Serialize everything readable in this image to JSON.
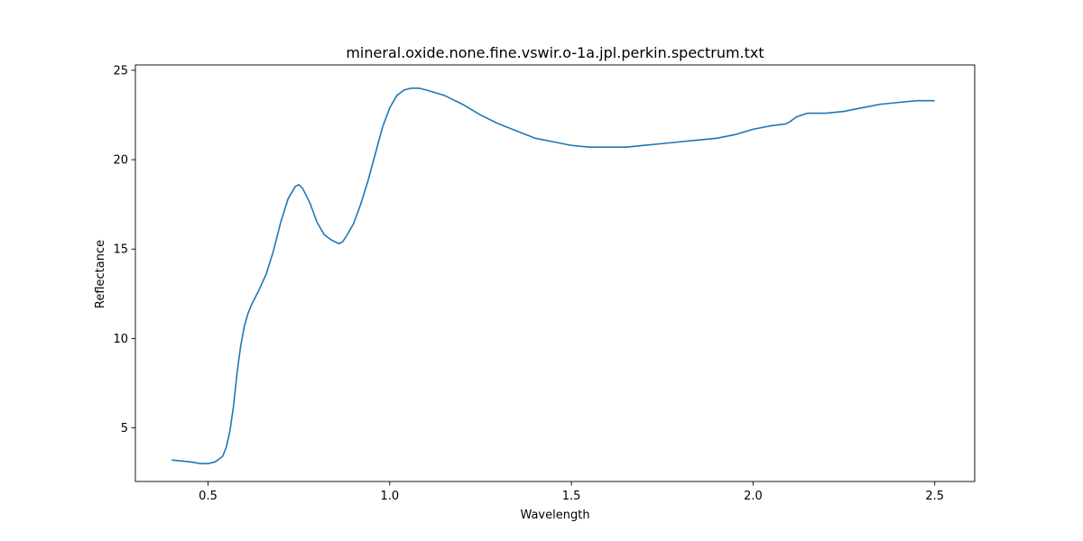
{
  "chart_data": {
    "type": "line",
    "title": "mineral.oxide.none.fine.vswir.o-1a.jpl.perkin.spectrum.txt",
    "xlabel": "Wavelength",
    "ylabel": "Reflectance",
    "xlim": [
      0.3,
      2.61
    ],
    "ylim": [
      2.0,
      25.3
    ],
    "xticks": [
      0.5,
      1.0,
      1.5,
      2.0,
      2.5
    ],
    "xtick_labels": [
      "0.5",
      "1.0",
      "1.5",
      "2.0",
      "2.5"
    ],
    "yticks": [
      5,
      10,
      15,
      20,
      25
    ],
    "ytick_labels": [
      "5",
      "10",
      "15",
      "20",
      "25"
    ],
    "grid": false,
    "series": [
      {
        "color": "#1f77b4",
        "x": [
          0.4,
          0.45,
          0.48,
          0.5,
          0.52,
          0.54,
          0.55,
          0.56,
          0.57,
          0.58,
          0.59,
          0.6,
          0.61,
          0.62,
          0.64,
          0.66,
          0.68,
          0.7,
          0.72,
          0.74,
          0.75,
          0.76,
          0.78,
          0.8,
          0.82,
          0.84,
          0.86,
          0.87,
          0.88,
          0.9,
          0.92,
          0.94,
          0.96,
          0.98,
          1.0,
          1.02,
          1.04,
          1.06,
          1.08,
          1.1,
          1.15,
          1.2,
          1.25,
          1.3,
          1.35,
          1.4,
          1.45,
          1.5,
          1.55,
          1.6,
          1.65,
          1.7,
          1.75,
          1.8,
          1.85,
          1.9,
          1.95,
          2.0,
          2.05,
          2.09,
          2.1,
          2.12,
          2.15,
          2.2,
          2.25,
          2.3,
          2.35,
          2.4,
          2.45,
          2.5
        ],
        "y": [
          3.2,
          3.1,
          3.0,
          3.0,
          3.1,
          3.4,
          3.9,
          4.8,
          6.2,
          8.1,
          9.6,
          10.7,
          11.4,
          11.9,
          12.7,
          13.6,
          14.9,
          16.5,
          17.8,
          18.5,
          18.6,
          18.4,
          17.6,
          16.5,
          15.8,
          15.5,
          15.3,
          15.4,
          15.7,
          16.4,
          17.5,
          18.8,
          20.3,
          21.8,
          22.9,
          23.6,
          23.9,
          24.0,
          24.0,
          23.9,
          23.6,
          23.1,
          22.5,
          22.0,
          21.6,
          21.2,
          21.0,
          20.8,
          20.7,
          20.7,
          20.7,
          20.8,
          20.9,
          21.0,
          21.1,
          21.2,
          21.4,
          21.7,
          21.9,
          22.0,
          22.1,
          22.4,
          22.6,
          22.6,
          22.7,
          22.9,
          23.1,
          23.2,
          23.3,
          23.3
        ]
      }
    ]
  }
}
